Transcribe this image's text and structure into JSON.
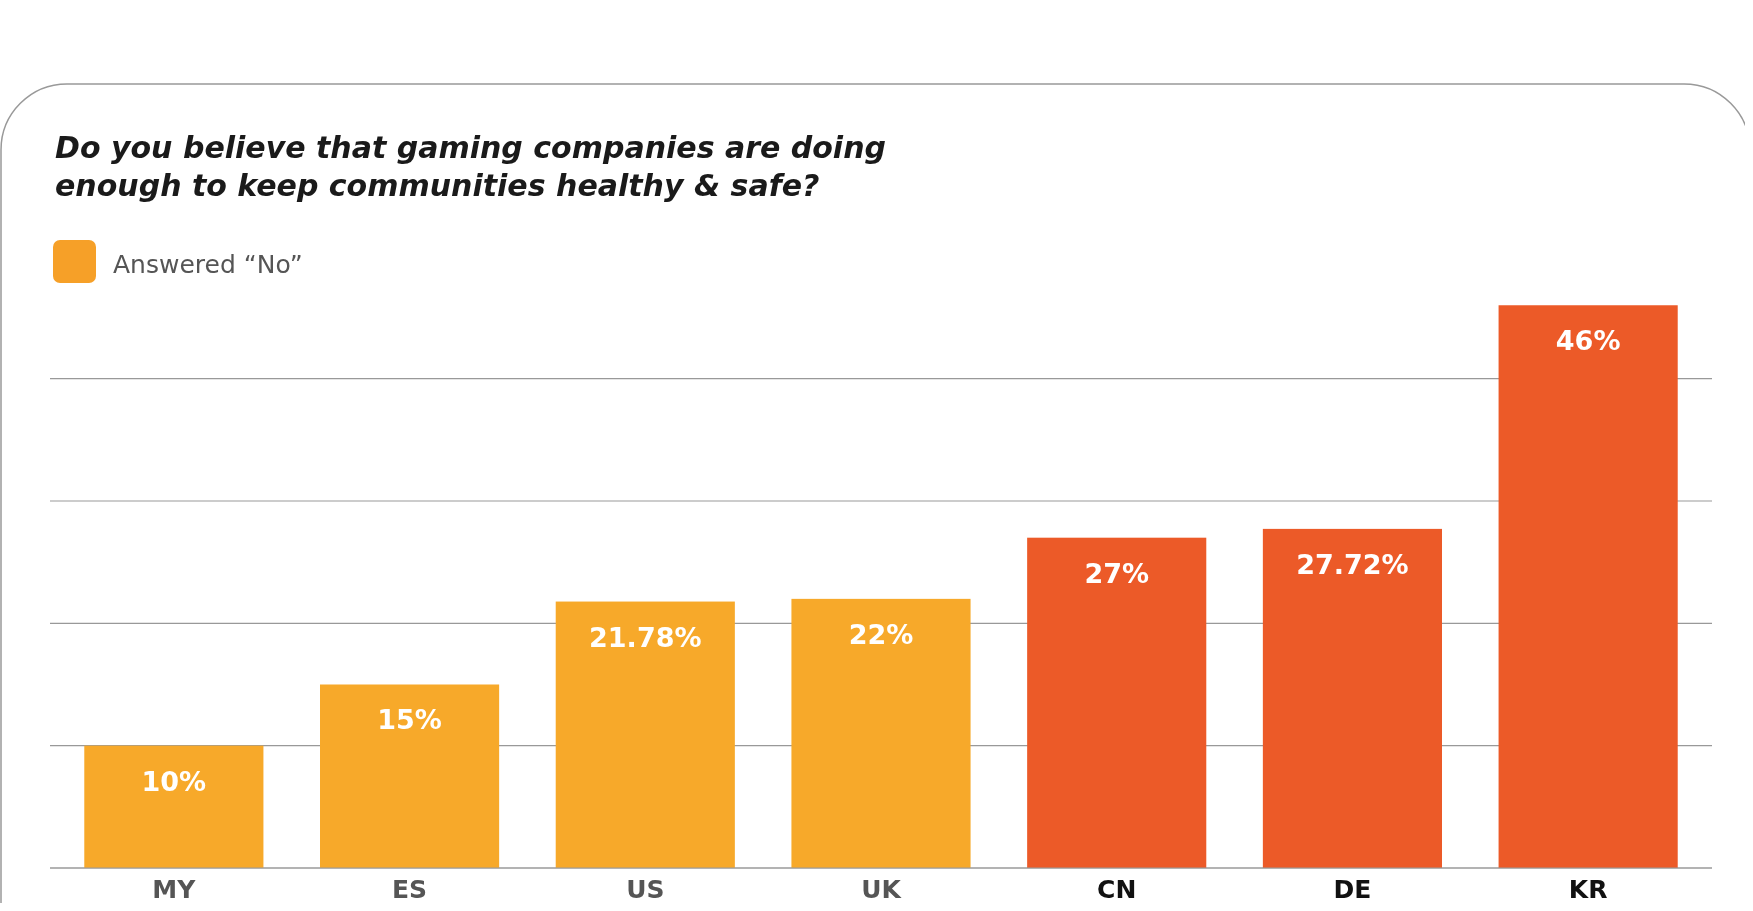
{
  "chart_data": {
    "type": "bar",
    "title": "Do you believe that gaming companies are doing enough to keep communities healthy & safe?",
    "categories": [
      "MY",
      "ES",
      "US",
      "UK",
      "CN",
      "DE",
      "KR"
    ],
    "series": [
      {
        "name": "Answered “No”",
        "color": "#f6a028",
        "colors": [
          "#f7a92a",
          "#f7a92a",
          "#f7a92a",
          "#f7a92a",
          "#ec5a28",
          "#ec5a28",
          "#ec5a28"
        ],
        "values": [
          10,
          15,
          21.78,
          22,
          27,
          27.72,
          46
        ],
        "value_labels": [
          "10%",
          "15%",
          "21.78%",
          "22%",
          "27%",
          "27.72%",
          "46%"
        ]
      }
    ],
    "tick_labels": "x",
    "grid": "y",
    "legend": "top left"
  }
}
